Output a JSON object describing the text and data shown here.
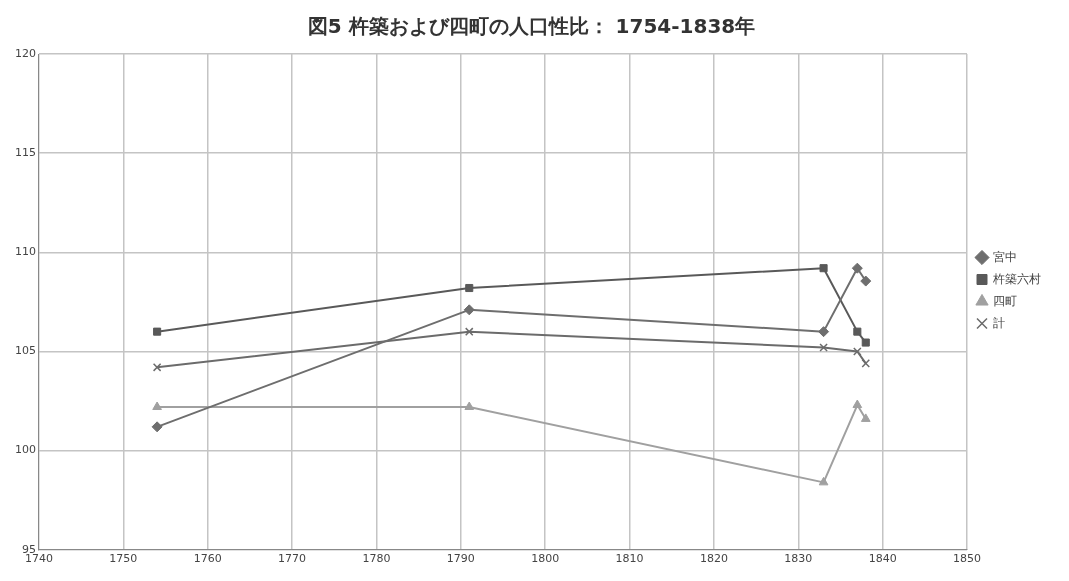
{
  "chart_data": {
    "type": "line",
    "title": "図5 杵築および四町の人口性比： 1754-1838年",
    "x": [
      1754,
      1791,
      1833,
      1837,
      1838
    ],
    "series": [
      {
        "name": "宮中",
        "color": "#6e6e6e",
        "marker": "diamond",
        "values": [
          101.2,
          107.1,
          106.0,
          109.2,
          108.55
        ]
      },
      {
        "name": "杵築六村",
        "color": "#595959",
        "marker": "square",
        "values": [
          106.0,
          108.2,
          109.2,
          106.0,
          105.45
        ]
      },
      {
        "name": "四町",
        "color": "#a0a0a0",
        "marker": "triangle",
        "values": [
          102.2,
          102.2,
          98.4,
          102.3,
          101.6
        ]
      },
      {
        "name": "計",
        "color": "#6b6b6b",
        "marker": "cross",
        "values": [
          104.2,
          106.0,
          105.2,
          105.0,
          104.4
        ]
      }
    ],
    "xlim": [
      1740,
      1850
    ],
    "xticks": [
      1740,
      1750,
      1760,
      1770,
      1780,
      1790,
      1800,
      1810,
      1820,
      1830,
      1840,
      1850
    ],
    "ylim": [
      95,
      120
    ],
    "yticks": [
      95,
      100,
      105,
      110,
      115,
      120
    ],
    "grid": true,
    "legend": "right",
    "line_style": "solid"
  }
}
